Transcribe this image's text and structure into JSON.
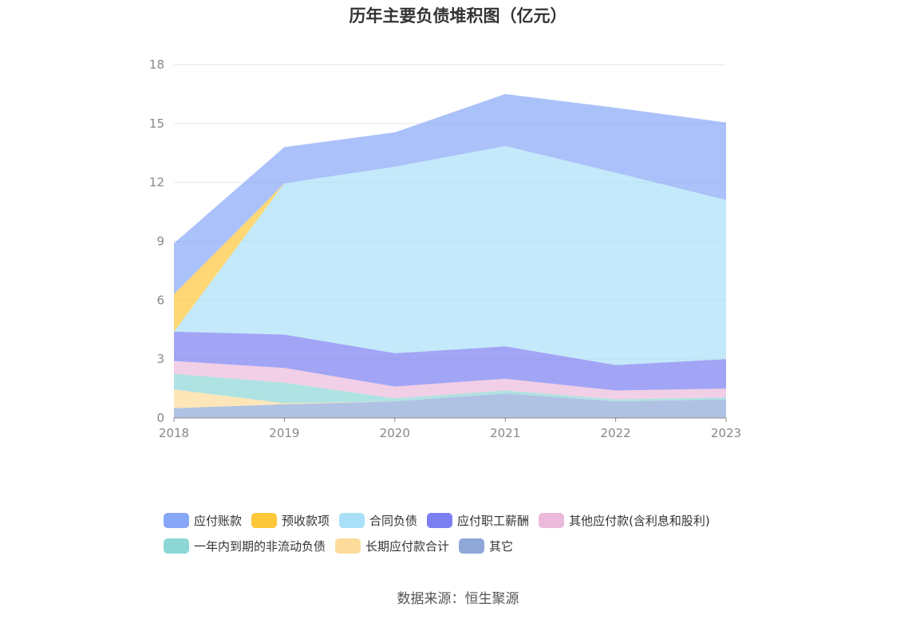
{
  "page": {
    "title": "历年主要负债堆积图（亿元）",
    "source": "数据来源：恒生聚源"
  },
  "chart_data": {
    "type": "area",
    "stacked": true,
    "title": "历年主要负债堆积图（亿元）",
    "categories": [
      "2018",
      "2019",
      "2020",
      "2021",
      "2022",
      "2023"
    ],
    "ylim": [
      0,
      18
    ],
    "yticks": [
      "0",
      "3",
      "6",
      "9",
      "12",
      "15",
      "18"
    ],
    "grid": true,
    "legend_position": "bottom",
    "series": [
      {
        "name": "其它",
        "color": "#8fa8d8",
        "values": [
          0.5,
          0.7,
          0.85,
          1.25,
          0.85,
          0.95
        ]
      },
      {
        "name": "长期应付款合计",
        "color": "#fddb9a",
        "values": [
          0.95,
          0.05,
          0.0,
          0.0,
          0.0,
          0.0
        ]
      },
      {
        "name": "一年内到期的非流动负债",
        "color": "#8dd6d6",
        "values": [
          0.8,
          1.05,
          0.15,
          0.15,
          0.1,
          0.1
        ]
      },
      {
        "name": "其他应付款(含利息和股利)",
        "color": "#ebbadb",
        "values": [
          0.65,
          0.75,
          0.6,
          0.6,
          0.45,
          0.45
        ]
      },
      {
        "name": "应付职工薪酬",
        "color": "#7b7ff1",
        "values": [
          1.5,
          1.7,
          1.7,
          1.65,
          1.3,
          1.5
        ]
      },
      {
        "name": "合同负债",
        "color": "#a9e0f8",
        "values": [
          0.0,
          7.7,
          9.5,
          10.2,
          9.8,
          8.1
        ]
      },
      {
        "name": "预收款项",
        "color": "#fdc83a",
        "values": [
          1.9,
          0.0,
          0.0,
          0.0,
          0.0,
          0.0
        ]
      },
      {
        "name": "应付账款",
        "color": "#87a6f8",
        "values": [
          2.6,
          1.85,
          1.75,
          2.65,
          3.3,
          3.95
        ]
      }
    ],
    "legend": [
      {
        "name": "应付账款",
        "color": "#87a6f8"
      },
      {
        "name": "预收款项",
        "color": "#fdc83a"
      },
      {
        "name": "合同负债",
        "color": "#a9e0f8"
      },
      {
        "name": "应付职工薪酬",
        "color": "#7b7ff1"
      },
      {
        "name": "其他应付款(含利息和股利)",
        "color": "#ebbadb"
      },
      {
        "name": "一年内到期的非流动负债",
        "color": "#8dd6d6"
      },
      {
        "name": "长期应付款合计",
        "color": "#fddb9a"
      },
      {
        "name": "其它",
        "color": "#8fa8d8"
      }
    ]
  }
}
